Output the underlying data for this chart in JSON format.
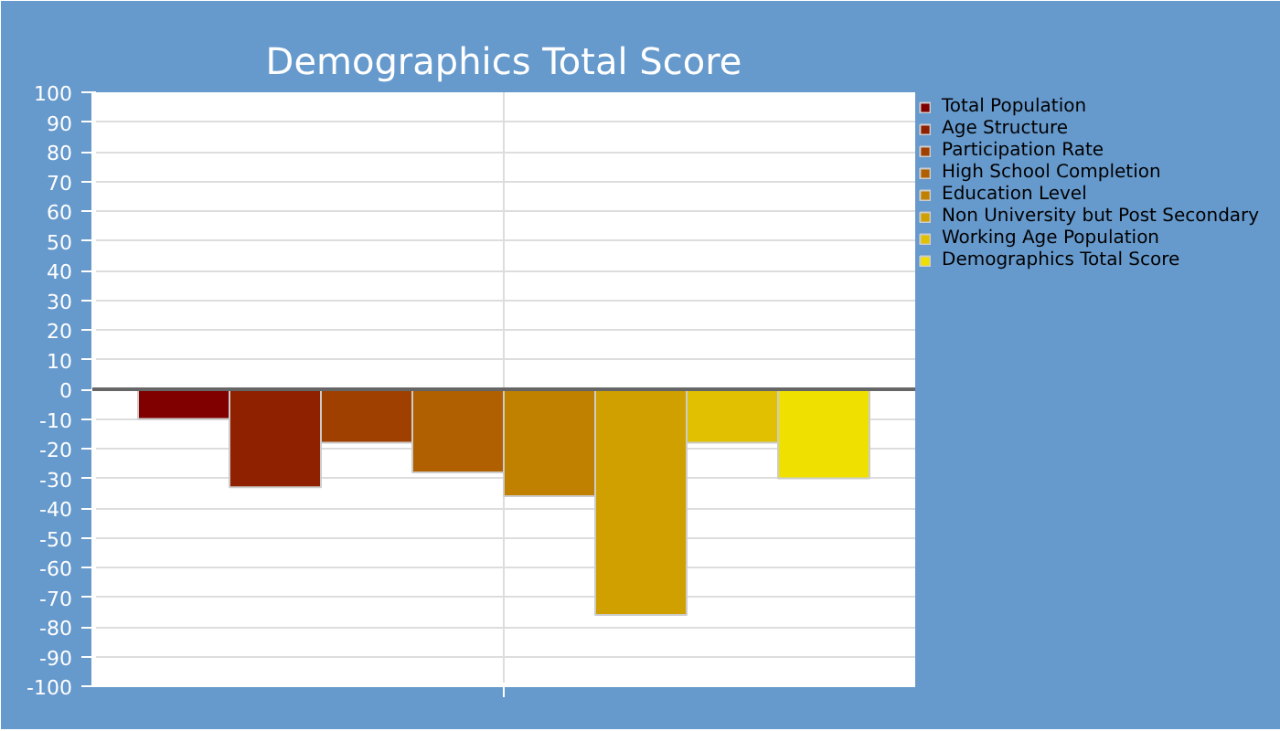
{
  "chart_data": {
    "type": "bar",
    "title": "Demographics Total Score",
    "categories": [
      null
    ],
    "series": [
      {
        "name": "Total Population",
        "color": "#800000",
        "values": [
          -10
        ]
      },
      {
        "name": "Age Structure",
        "color": "#8f2000",
        "values": [
          -33
        ]
      },
      {
        "name": "Participation Rate",
        "color": "#a04000",
        "values": [
          -18
        ]
      },
      {
        "name": "High School Completion",
        "color": "#b06000",
        "values": [
          -28
        ]
      },
      {
        "name": "Education Level",
        "color": "#c08000",
        "values": [
          -36
        ]
      },
      {
        "name": "Non University but Post Secondary",
        "color": "#d0a000",
        "values": [
          -76
        ]
      },
      {
        "name": "Working Age Population",
        "color": "#e0c000",
        "values": [
          -18
        ]
      },
      {
        "name": "Demographics Total Score",
        "color": "#f0e000",
        "values": [
          -30
        ]
      }
    ],
    "ylim": [
      -100,
      100
    ],
    "yticks": [
      -100,
      -90,
      -80,
      -70,
      -60,
      -50,
      -40,
      -30,
      -20,
      -10,
      0,
      10,
      20,
      30,
      40,
      50,
      60,
      70,
      80,
      90,
      100
    ],
    "grid": true,
    "legend": "right"
  }
}
